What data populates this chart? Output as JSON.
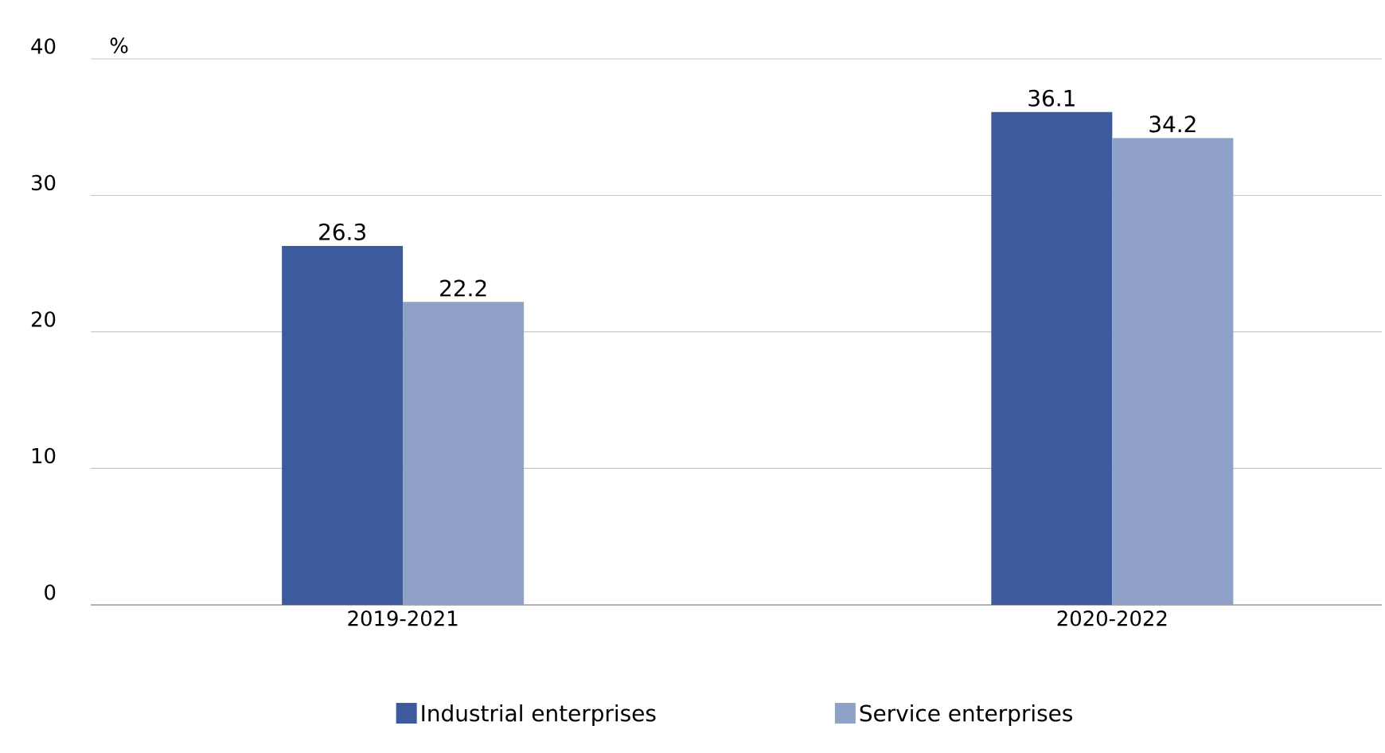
{
  "chart_data": {
    "type": "bar",
    "ylabel": "%",
    "categories": [
      "2019-2021",
      "2020-2022"
    ],
    "series": [
      {
        "name": "Industrial enterprises",
        "color": "#3d5a9e",
        "values": [
          26.3,
          36.1
        ]
      },
      {
        "name": "Service enterprises",
        "color": "#8fa1c6",
        "values": [
          22.2,
          34.2
        ]
      }
    ],
    "ylim": [
      0,
      40
    ],
    "yticks": [
      0,
      10,
      20,
      30,
      40
    ],
    "grid": "y",
    "legend": "bottom",
    "data_labels": true
  }
}
